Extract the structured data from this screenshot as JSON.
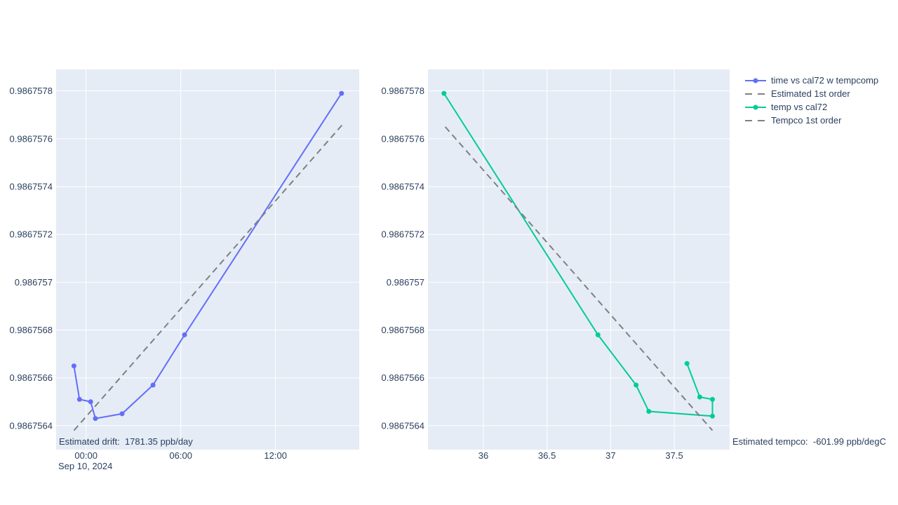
{
  "figure": {
    "background": "#ffffff",
    "plot_bg": "#e5ecf6",
    "grid_color": "#ffffff",
    "text_color": "#2a3f5f"
  },
  "legend": {
    "items": [
      {
        "label": "time vs cal72 w tempcomp",
        "color": "#636efa",
        "dash": "solid",
        "marker": true
      },
      {
        "label": "Estimated 1st order",
        "color": "#808080",
        "dash": "dash",
        "marker": false
      },
      {
        "label": "temp vs cal72",
        "color": "#00cc96",
        "dash": "solid",
        "marker": true
      },
      {
        "label": "Tempco 1st order",
        "color": "#808080",
        "dash": "dash",
        "marker": false
      }
    ]
  },
  "chart_data": [
    {
      "id": "time-vs-cal72",
      "type": "line",
      "title": "",
      "xlabel": "Sep 10, 2024",
      "ylabel": "",
      "x_unit": "hours from Sep 10, 2024 00:00",
      "x_range": [
        -1.898,
        17.302
      ],
      "y_range": [
        0.9867563,
        0.98675789
      ],
      "grid": true,
      "x_ticks": [
        {
          "value": 0,
          "label": "00:00"
        },
        {
          "value": 6,
          "label": "06:00"
        },
        {
          "value": 12,
          "label": "12:00"
        }
      ],
      "y_ticks": [
        {
          "value": 0.9867564,
          "label": "0.9867564"
        },
        {
          "value": 0.9867566,
          "label": "0.9867566"
        },
        {
          "value": 0.9867568,
          "label": "0.9867568"
        },
        {
          "value": 0.986757,
          "label": "0.986757"
        },
        {
          "value": 0.9867572,
          "label": "0.9867572"
        },
        {
          "value": 0.9867574,
          "label": "0.9867574"
        },
        {
          "value": 0.9867576,
          "label": "0.9867576"
        },
        {
          "value": 0.9867578,
          "label": "0.9867578"
        }
      ],
      "series": [
        {
          "name": "time vs cal72 w tempcomp",
          "color": "#636efa",
          "dash": "solid",
          "markers": true,
          "x": [
            -0.77,
            -0.42,
            0.29,
            0.59,
            2.28,
            4.24,
            6.24,
            16.18
          ],
          "y": [
            0.98675665,
            0.98675651,
            0.9867565,
            0.98675643,
            0.98675645,
            0.98675657,
            0.98675678,
            0.98675779
          ]
        },
        {
          "name": "Estimated 1st order",
          "color": "#808080",
          "dash": "dash",
          "markers": false,
          "x": [
            -0.77,
            16.25
          ],
          "y": [
            0.98675638,
            0.98675766
          ]
        }
      ],
      "annotation": "Estimated drift:  1781.35 ppb/day"
    },
    {
      "id": "temp-vs-cal72",
      "type": "line",
      "title": "",
      "xlabel": "",
      "ylabel": "",
      "x_unit": "degC",
      "x_range": [
        35.5645,
        37.935
      ],
      "y_range": [
        0.9867563,
        0.98675789
      ],
      "grid": true,
      "x_ticks": [
        {
          "value": 36,
          "label": "36"
        },
        {
          "value": 36.5,
          "label": "36.5"
        },
        {
          "value": 37,
          "label": "37"
        },
        {
          "value": 37.5,
          "label": "37.5"
        }
      ],
      "y_ticks": [
        {
          "value": 0.9867564,
          "label": "0.9867564"
        },
        {
          "value": 0.9867566,
          "label": "0.9867566"
        },
        {
          "value": 0.9867568,
          "label": "0.9867568"
        },
        {
          "value": 0.986757,
          "label": "0.986757"
        },
        {
          "value": 0.9867572,
          "label": "0.9867572"
        },
        {
          "value": 0.9867574,
          "label": "0.9867574"
        },
        {
          "value": 0.9867576,
          "label": "0.9867576"
        },
        {
          "value": 0.9867578,
          "label": "0.9867578"
        }
      ],
      "series": [
        {
          "name": "temp vs cal72",
          "color": "#00cc96",
          "dash": "solid",
          "markers": true,
          "x": [
            37.6,
            37.7,
            37.8,
            37.8,
            37.3,
            37.2,
            36.9,
            35.69
          ],
          "y": [
            0.98675666,
            0.98675652,
            0.98675651,
            0.98675644,
            0.98675646,
            0.98675657,
            0.98675678,
            0.98675779
          ]
        },
        {
          "name": "Tempco 1st order",
          "color": "#808080",
          "dash": "dash",
          "markers": false,
          "x": [
            35.7,
            37.8
          ],
          "y": [
            0.98675765,
            0.98675638
          ]
        }
      ],
      "annotation": "Estimated tempco:  -601.99 ppb/degC"
    }
  ]
}
